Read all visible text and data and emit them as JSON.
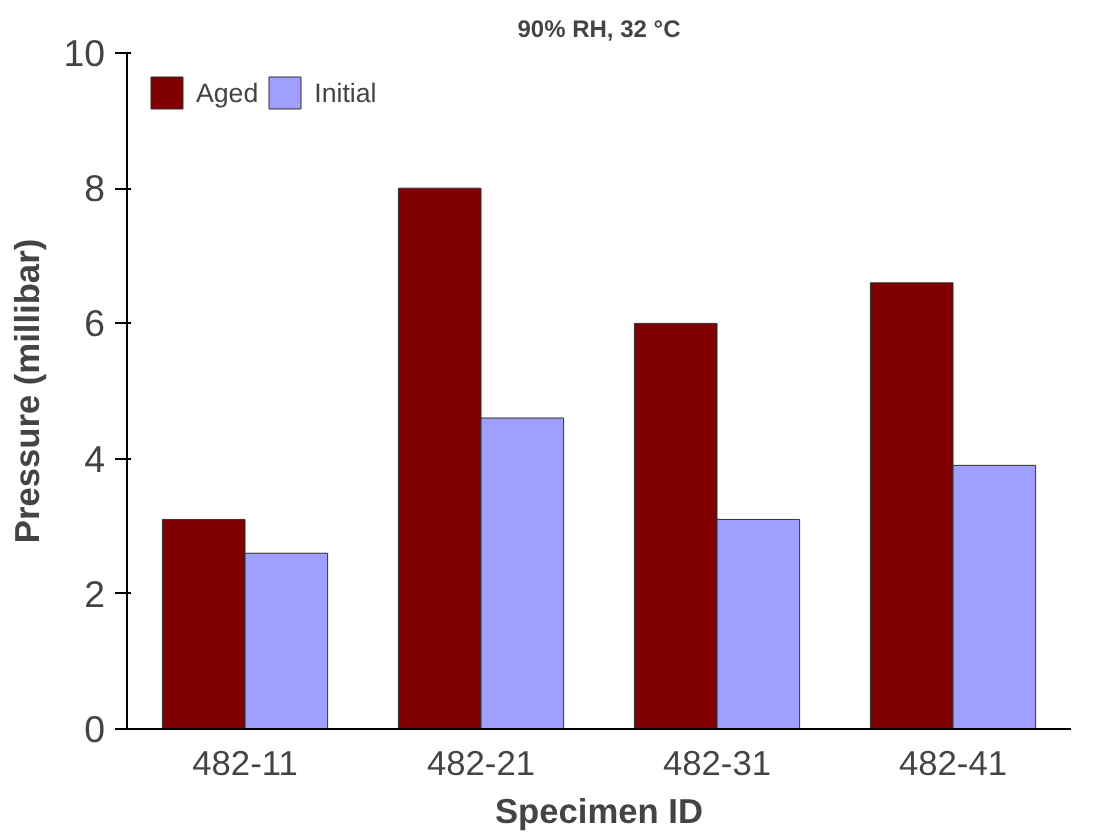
{
  "chart_data": {
    "type": "bar",
    "title": "90% RH, 32 °C",
    "xlabel": "Specimen ID",
    "ylabel": "Pressure (millibar)",
    "categories": [
      "482-11",
      "482-21",
      "482-31",
      "482-41"
    ],
    "series": [
      {
        "name": "Aged",
        "color": "#800000",
        "values": [
          3.1,
          8.0,
          6.0,
          6.6
        ]
      },
      {
        "name": "Initial",
        "color": "#9f9fff",
        "values": [
          2.6,
          4.6,
          3.1,
          3.9
        ]
      }
    ],
    "ylim": [
      0,
      10
    ],
    "yticks": [
      0,
      2,
      4,
      6,
      8,
      10
    ],
    "grid": false,
    "legend": "top left"
  }
}
